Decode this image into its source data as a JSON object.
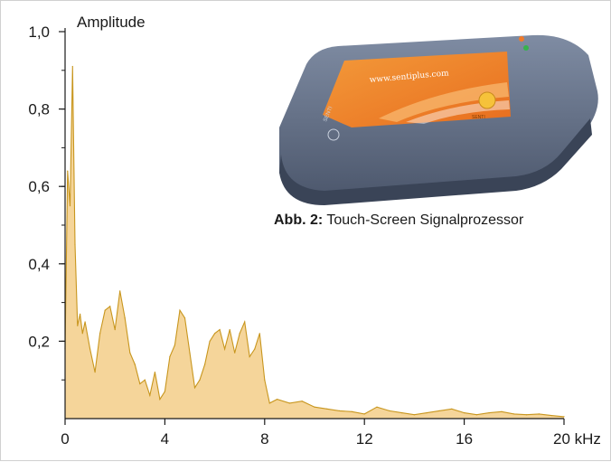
{
  "chart_data": {
    "type": "area",
    "title": "",
    "xlabel": "",
    "ylabel": "Amplitude",
    "x_unit": "kHz",
    "xlim": [
      0,
      20
    ],
    "ylim": [
      0,
      1.0
    ],
    "x_ticks": [
      0,
      4,
      8,
      12,
      16,
      20
    ],
    "x_tick_labels": [
      "0",
      "4",
      "8",
      "12",
      "16",
      "20 kHz"
    ],
    "y_ticks": [
      0.2,
      0.4,
      0.6,
      0.8,
      1.0
    ],
    "y_tick_labels": [
      "0,2",
      "0,4",
      "0,6",
      "0,8",
      "1,0"
    ],
    "grid": false,
    "fill_color": "#f5d59a",
    "line_color": "#c8961e",
    "series": [
      {
        "x": [
          0,
          0.1,
          0.2,
          0.3,
          0.4,
          0.5,
          0.6,
          0.7,
          0.8,
          1.0,
          1.2,
          1.4,
          1.6,
          1.8,
          2.0,
          2.2,
          2.4,
          2.6,
          2.8,
          3.0,
          3.2,
          3.4,
          3.6,
          3.8,
          4.0,
          4.2,
          4.4,
          4.6,
          4.8,
          5.0,
          5.2,
          5.4,
          5.6,
          5.8,
          6.0,
          6.2,
          6.4,
          6.6,
          6.8,
          7.0,
          7.2,
          7.4,
          7.6,
          7.8,
          8.0,
          8.2,
          8.5,
          9.0,
          9.5,
          10.0,
          10.5,
          11.0,
          11.5,
          12.0,
          12.5,
          13.0,
          13.5,
          14.0,
          14.5,
          15.0,
          15.5,
          16.0,
          16.5,
          17.0,
          17.5,
          18.0,
          18.5,
          19.0,
          19.5,
          20.0
        ],
        "values": [
          0.18,
          0.64,
          0.55,
          0.91,
          0.45,
          0.24,
          0.27,
          0.22,
          0.25,
          0.18,
          0.12,
          0.22,
          0.28,
          0.29,
          0.23,
          0.33,
          0.26,
          0.17,
          0.14,
          0.09,
          0.1,
          0.06,
          0.12,
          0.05,
          0.07,
          0.16,
          0.19,
          0.28,
          0.26,
          0.17,
          0.08,
          0.1,
          0.14,
          0.2,
          0.22,
          0.23,
          0.18,
          0.23,
          0.17,
          0.22,
          0.25,
          0.16,
          0.18,
          0.22,
          0.1,
          0.04,
          0.05,
          0.04,
          0.045,
          0.03,
          0.025,
          0.02,
          0.018,
          0.012,
          0.03,
          0.02,
          0.015,
          0.01,
          0.015,
          0.02,
          0.025,
          0.015,
          0.01,
          0.015,
          0.018,
          0.012,
          0.01,
          0.012,
          0.008,
          0.005
        ]
      }
    ]
  },
  "caption": {
    "bold": "Abb. 2:",
    "text": " Touch-Screen Signalprozessor"
  },
  "device": {
    "screen_url_text": "www.sentiplus.com",
    "brand_text": "SENTI"
  }
}
